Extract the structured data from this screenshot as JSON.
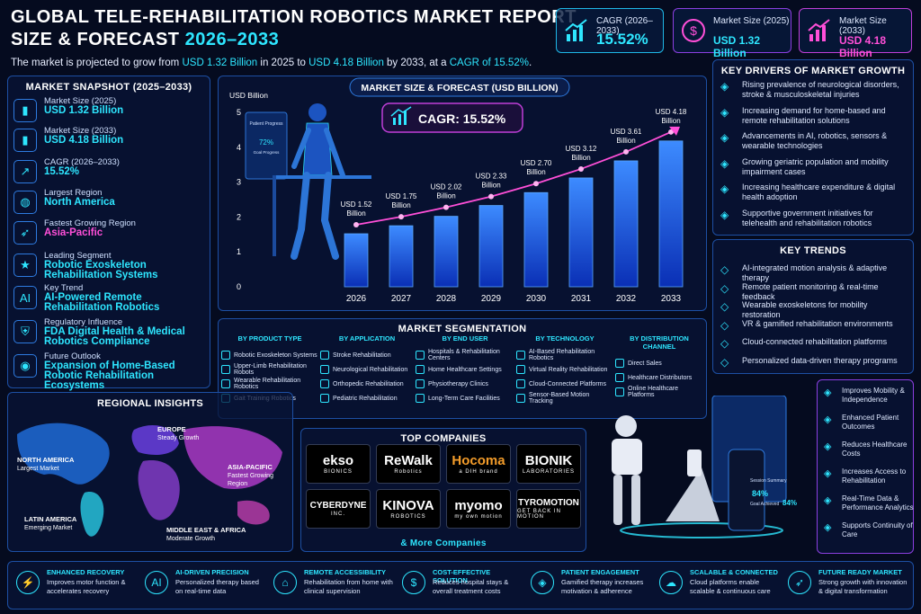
{
  "header": {
    "title_line1": "GLOBAL TELE-REHABILITATION ROBOTICS MARKET REPORT",
    "title_line2_prefix": "SIZE & FORECAST",
    "title_line2_years": "2026–2033",
    "summary_parts": [
      "The market is projected to grow from ",
      "USD 1.32 Billion",
      " in 2025 to ",
      "USD 4.18 Billion",
      " by 2033, at a ",
      "CAGR of 15.52%",
      "."
    ]
  },
  "top_stats": [
    {
      "label": "CAGR (2026–2033)",
      "value": "15.52%",
      "icon": "growth-chart-icon",
      "color": "#2ee6ff"
    },
    {
      "label": "Market Size (2025)",
      "value": "USD 1.32 Billion",
      "icon": "dollar-icon",
      "color": "#2ee6ff"
    },
    {
      "label": "Market Size (2033)",
      "value": "USD 4.18 Billion",
      "icon": "bar-growth-icon",
      "color": "#ff4fd8"
    }
  ],
  "snapshot": {
    "title": "MARKET SNAPSHOT (2025–2033)",
    "rows": [
      {
        "label": "Market Size (2025)",
        "value": "USD 1.32 Billion",
        "color": "#2ee6ff",
        "icon": "bar-chart-icon"
      },
      {
        "label": "Market Size (2033)",
        "value": "USD 4.18 Billion",
        "color": "#2ee6ff",
        "icon": "bar-chart-icon"
      },
      {
        "label": "CAGR (2026–2033)",
        "value": "15.52%",
        "color": "#2ee6ff",
        "icon": "trend-up-icon"
      },
      {
        "label": "Largest Region",
        "value": "North America",
        "color": "#2ee6ff",
        "icon": "globe-icon"
      },
      {
        "label": "Fastest Growing Region",
        "value": "Asia-Pacific",
        "color": "#ff4fd8",
        "icon": "rocket-icon"
      },
      {
        "label": "Leading Segment",
        "value": "Robotic Exoskeleton Rehabilitation Systems",
        "color": "#2ee6ff",
        "icon": "star-icon"
      },
      {
        "label": "Key Trend",
        "value": "AI-Powered Remote Rehabilitation Robotics",
        "color": "#2ee6ff",
        "icon": "ai-icon"
      },
      {
        "label": "Regulatory Influence",
        "value": "FDA Digital Health & Medical Robotics Compliance",
        "color": "#2ee6ff",
        "icon": "shield-icon"
      },
      {
        "label": "Future Outlook",
        "value": "Expansion of Home-Based Robotic Rehabilitation Ecosystems",
        "color": "#2ee6ff",
        "icon": "eye-icon"
      }
    ]
  },
  "chart_data": {
    "type": "bar",
    "title": "MARKET SIZE & FORECAST (USD BILLION)",
    "ylabel": "USD Billion",
    "categories": [
      "2026",
      "2027",
      "2028",
      "2029",
      "2030",
      "2031",
      "2032",
      "2033"
    ],
    "values": [
      1.52,
      1.75,
      2.02,
      2.33,
      2.7,
      3.12,
      3.61,
      4.18
    ],
    "data_labels": [
      "USD 1.52 Billion",
      "USD 1.75 Billion",
      "USD 2.02 Billion",
      "USD 2.33 Billion",
      "USD 2.70 Billion",
      "USD 3.12 Billion",
      "USD 3.61 Billion",
      "USD 4.18 Billion"
    ],
    "y_ticks": [
      "0",
      "1",
      "2",
      "3",
      "4",
      "5"
    ],
    "ylim": [
      0,
      5
    ],
    "cagr_badge": "CAGR: 15.52%",
    "trend_line": true,
    "grid": false
  },
  "screen_display": {
    "title": "Patient Progress",
    "value": "72%",
    "sub": "Goal Progress"
  },
  "drivers": {
    "title": "KEY DRIVERS OF MARKET GROWTH",
    "items": [
      "Rising prevalence of neurological disorders, stroke & musculoskeletal injuries",
      "Increasing demand for home-based and remote rehabilitation solutions",
      "Advancements in AI, robotics, sensors & wearable technologies",
      "Growing geriatric population and mobility impairment cases",
      "Increasing healthcare expenditure & digital health adoption",
      "Supportive government initiatives for telehealth and rehabilitation robotics"
    ]
  },
  "trends": {
    "title": "KEY TRENDS",
    "items": [
      "AI-integrated motion analysis & adaptive therapy",
      "Remote patient monitoring & real-time feedback",
      "Wearable exoskeletons for mobility restoration",
      "VR & gamified rehabilitation environments",
      "Cloud-connected rehabilitation platforms",
      "Personalized data-driven therapy programs"
    ]
  },
  "segmentation": {
    "title": "MARKET SEGMENTATION",
    "columns": [
      {
        "header": "BY PRODUCT TYPE",
        "items": [
          "Robotic Exoskeleton Systems",
          "Upper-Limb Rehabilitation Robots",
          "Wearable Rehabilitation Robotics",
          "Gait Training Robotics"
        ]
      },
      {
        "header": "BY APPLICATION",
        "items": [
          "Stroke Rehabilitation",
          "Neurological Rehabilitation",
          "Orthopedic Rehabilitation",
          "Pediatric Rehabilitation"
        ]
      },
      {
        "header": "BY END USER",
        "items": [
          "Hospitals & Rehabilitation Centers",
          "Home Healthcare Settings",
          "Physiotherapy Clinics",
          "Long-Term Care Facilities"
        ]
      },
      {
        "header": "BY TECHNOLOGY",
        "items": [
          "AI-Based Rehabilitation Robotics",
          "Virtual Reality Rehabilitation",
          "Cloud-Connected Platforms",
          "Sensor-Based Motion Tracking"
        ]
      },
      {
        "header": "BY DISTRIBUTION CHANNEL",
        "items": [
          "Direct Sales",
          "Healthcare Distributors",
          "Online Healthcare Platforms"
        ]
      }
    ]
  },
  "regional": {
    "title": "REGIONAL INSIGHTS",
    "regions": [
      {
        "name": "NORTH AMERICA",
        "desc": "Largest Market"
      },
      {
        "name": "EUROPE",
        "desc": "Steady Growth"
      },
      {
        "name": "ASIA-PACIFIC",
        "desc": "Fastest Growing Region"
      },
      {
        "name": "LATIN AMERICA",
        "desc": "Emerging Market"
      },
      {
        "name": "MIDDLE EAST & AFRICA",
        "desc": "Moderate Growth"
      }
    ]
  },
  "companies": {
    "title": "TOP COMPANIES",
    "items": [
      {
        "name": "ekso",
        "sub": "BIONICS"
      },
      {
        "name": "ReWalk",
        "sub": "Robotics"
      },
      {
        "name": "Hocoma",
        "sub": "a DIH brand"
      },
      {
        "name": "BIONIK",
        "sub": "LABORATORIES"
      },
      {
        "name": "CYBERDYNE",
        "sub": "INC."
      },
      {
        "name": "KINOVA",
        "sub": "ROBOTICS"
      },
      {
        "name": "myomo",
        "sub": "my own motion"
      },
      {
        "name": "TYROMOTION",
        "sub": "GET BACK IN MOTION"
      }
    ],
    "more": "& More Companies"
  },
  "device_screens": {
    "tablet_title": "Session Summary",
    "tablet_value": "84%",
    "tablet_sub": "Goal Achieved",
    "phone_value": "84%"
  },
  "benefits": [
    "Improves Mobility & Independence",
    "Enhanced Patient Outcomes",
    "Reduces Healthcare Costs",
    "Increases Access to Rehabilitation",
    "Real-Time Data & Performance Analytics",
    "Supports Continuity of Care"
  ],
  "footer": [
    {
      "title": "ENHANCED RECOVERY",
      "text": "Improves motor function & accelerates recovery",
      "icon": "runner-icon"
    },
    {
      "title": "AI-DRIVEN PRECISION",
      "text": "Personalized therapy based on real-time data",
      "icon": "ai-chip-icon"
    },
    {
      "title": "REMOTE ACCESSIBILITY",
      "text": "Rehabilitation from home with clinical supervision",
      "icon": "home-icon"
    },
    {
      "title": "COST-EFFECTIVE SOLUTION",
      "text": "Reduces hospital stays & overall treatment costs",
      "icon": "dollar-icon"
    },
    {
      "title": "PATIENT ENGAGEMENT",
      "text": "Gamified therapy increases motivation & adherence",
      "icon": "gamepad-icon"
    },
    {
      "title": "SCALABLE & CONNECTED",
      "text": "Cloud platforms enable scalable & continuous care",
      "icon": "cloud-icon"
    },
    {
      "title": "FUTURE READY MARKET",
      "text": "Strong growth with innovation & digital transformation",
      "icon": "rocket-icon"
    }
  ]
}
